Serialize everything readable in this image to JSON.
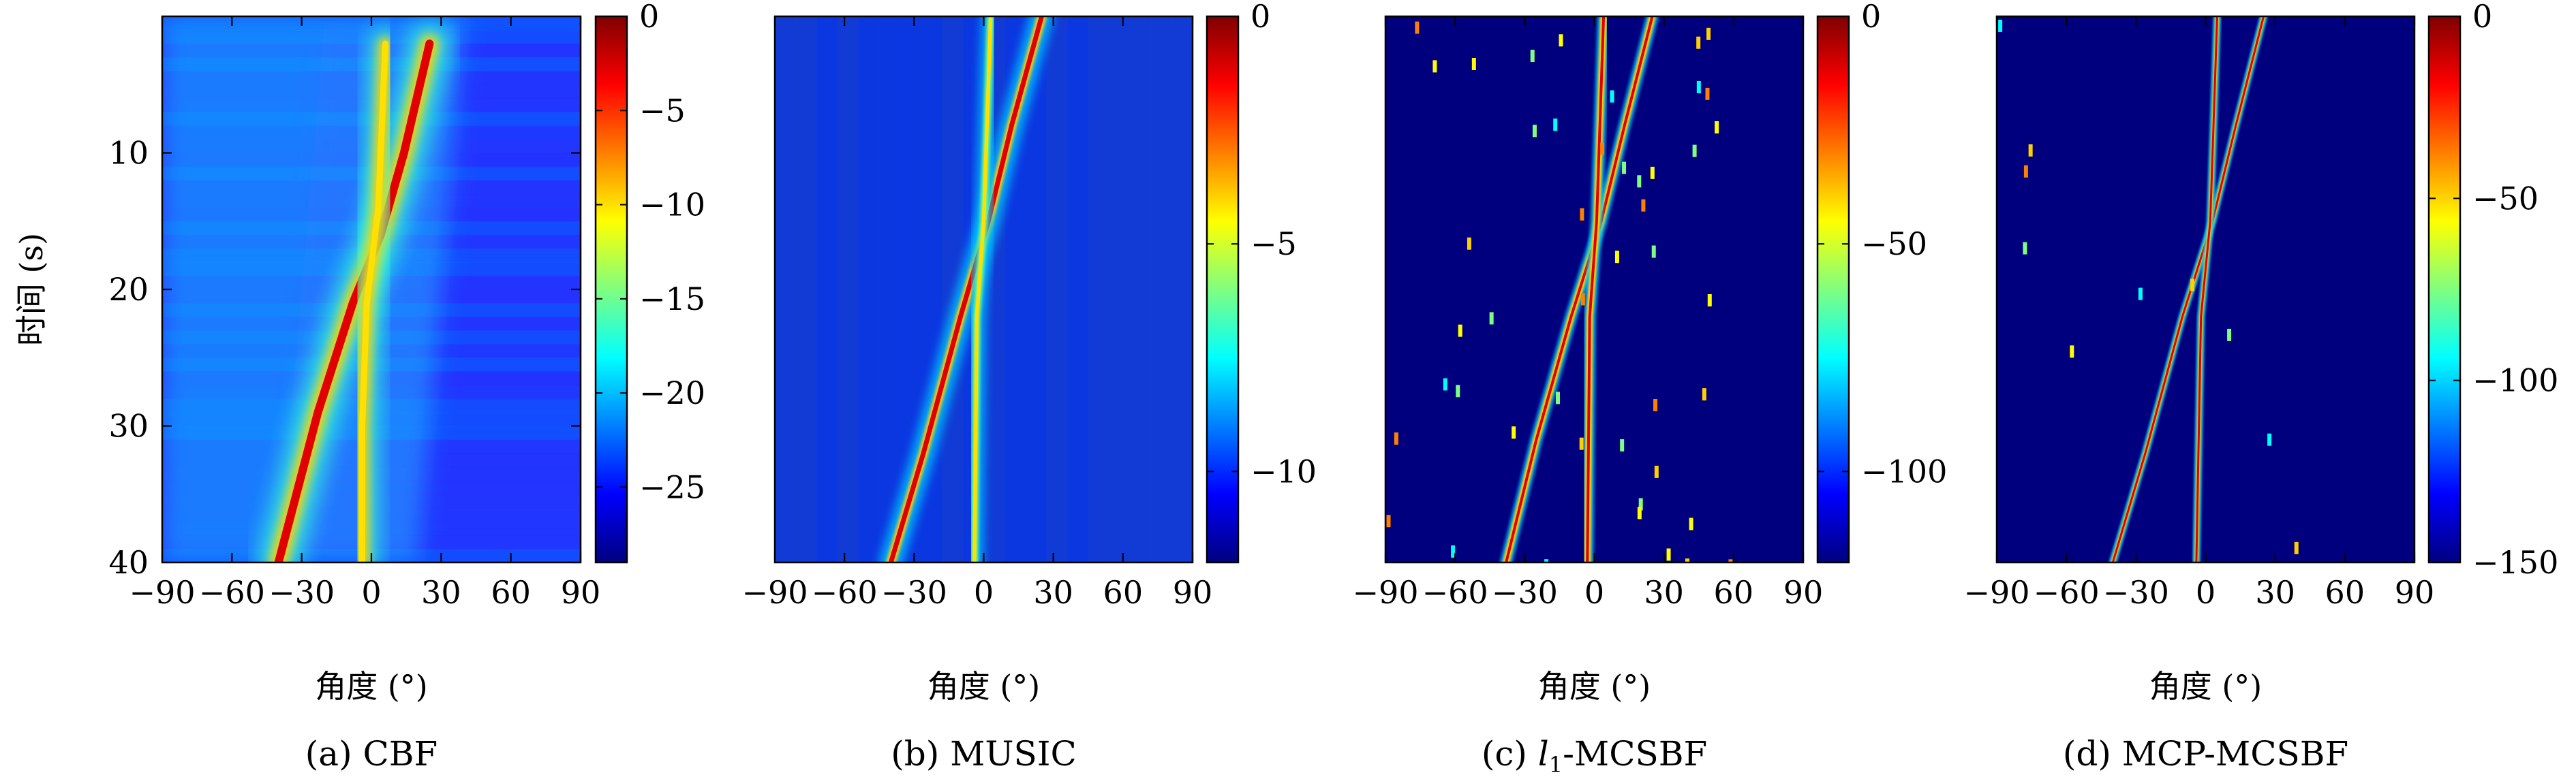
{
  "chart_data": [
    {
      "type": "heatmap",
      "panel": "(a)",
      "caption": "(a) CBF",
      "ylabel": "时间 (s)",
      "xlabel": "角度 (°)",
      "xlim": [
        -90,
        90
      ],
      "ylim": [
        40,
        0
      ],
      "xticks": [
        -90,
        -60,
        -30,
        0,
        30,
        60,
        90
      ],
      "yticks": [
        10,
        20,
        30,
        40
      ],
      "colorbar": {
        "min": -29,
        "max": 0,
        "ticks": [
          0,
          -5,
          -10,
          -15,
          -20,
          -25
        ],
        "labels": [
          "0",
          "−5",
          "−10",
          "−15",
          "−20",
          "−25"
        ]
      },
      "tracks": [
        {
          "points": [
            [
              25,
              2
            ],
            [
              14,
              10
            ],
            [
              4,
              16
            ],
            [
              -8,
              21
            ],
            [
              -23,
              29
            ],
            [
              -40,
              40
            ]
          ]
        },
        {
          "points": [
            [
              6,
              2
            ],
            [
              3,
              14
            ],
            [
              -2,
              21
            ],
            [
              -4,
              30
            ],
            [
              -4,
              40
            ]
          ]
        }
      ]
    },
    {
      "type": "heatmap",
      "panel": "(b)",
      "caption": "(b) MUSIC",
      "xlabel": "角度 (°)",
      "xlim": [
        -90,
        90
      ],
      "ylim": [
        40,
        0
      ],
      "xticks": [
        -90,
        -60,
        -30,
        0,
        30,
        60,
        90
      ],
      "colorbar": {
        "min": -12,
        "max": 0,
        "ticks": [
          0,
          -5,
          -10
        ],
        "labels": [
          "0",
          "−5",
          "−10"
        ]
      },
      "tracks": [
        {
          "points": [
            [
              25,
              0
            ],
            [
              12,
              8
            ],
            [
              2,
              15
            ],
            [
              -10,
              22
            ],
            [
              -26,
              32
            ],
            [
              -40,
              40
            ]
          ]
        },
        {
          "points": [
            [
              3,
              0
            ],
            [
              0,
              15
            ],
            [
              -3,
              22
            ],
            [
              -4,
              40
            ]
          ]
        }
      ]
    },
    {
      "type": "heatmap",
      "panel": "(c)",
      "caption_prefix": "(c) ",
      "caption_italic": "l",
      "caption_sub": "1",
      "caption_suffix": "-MCSBF",
      "xlabel": "角度 (°)",
      "xlim": [
        -90,
        90
      ],
      "ylim": [
        40,
        0
      ],
      "xticks": [
        -90,
        -60,
        -30,
        0,
        30,
        60,
        90
      ],
      "colorbar": {
        "min": -120,
        "max": 0,
        "ticks": [
          0,
          -50,
          -100
        ],
        "labels": [
          "0",
          "−50",
          "−100"
        ]
      },
      "tracks": [
        {
          "points": [
            [
              25,
              0
            ],
            [
              13,
              8
            ],
            [
              3,
              15
            ],
            [
              -10,
              22
            ],
            [
              -25,
              31
            ],
            [
              -38,
              40
            ]
          ]
        },
        {
          "points": [
            [
              4,
              0
            ],
            [
              1,
              15
            ],
            [
              -2,
              22
            ],
            [
              -3,
              40
            ]
          ]
        }
      ]
    },
    {
      "type": "heatmap",
      "panel": "(d)",
      "caption": "(d) MCP-MCSBF",
      "xlabel": "角度 (°)",
      "xlim": [
        -90,
        90
      ],
      "ylim": [
        40,
        0
      ],
      "xticks": [
        -90,
        -60,
        -30,
        0,
        30,
        60,
        90
      ],
      "colorbar": {
        "min": -150,
        "max": 0,
        "ticks": [
          0,
          -50,
          -100,
          -150
        ],
        "labels": [
          "0",
          "−50",
          "−100",
          "−150"
        ]
      },
      "tracks": [
        {
          "points": [
            [
              25,
              0
            ],
            [
              13,
              8
            ],
            [
              3,
              15
            ],
            [
              -10,
              22
            ],
            [
              -26,
              32
            ],
            [
              -40,
              40
            ]
          ]
        },
        {
          "points": [
            [
              5,
              0
            ],
            [
              2,
              15
            ],
            [
              -2,
              22
            ],
            [
              -4,
              40
            ]
          ]
        }
      ]
    }
  ],
  "colors": {
    "colormap": [
      "#00007f",
      "#0000ff",
      "#007fff",
      "#00ffff",
      "#7fff7f",
      "#ffff00",
      "#ff7f00",
      "#ff0000",
      "#7f0000"
    ],
    "axis": "#000000"
  }
}
